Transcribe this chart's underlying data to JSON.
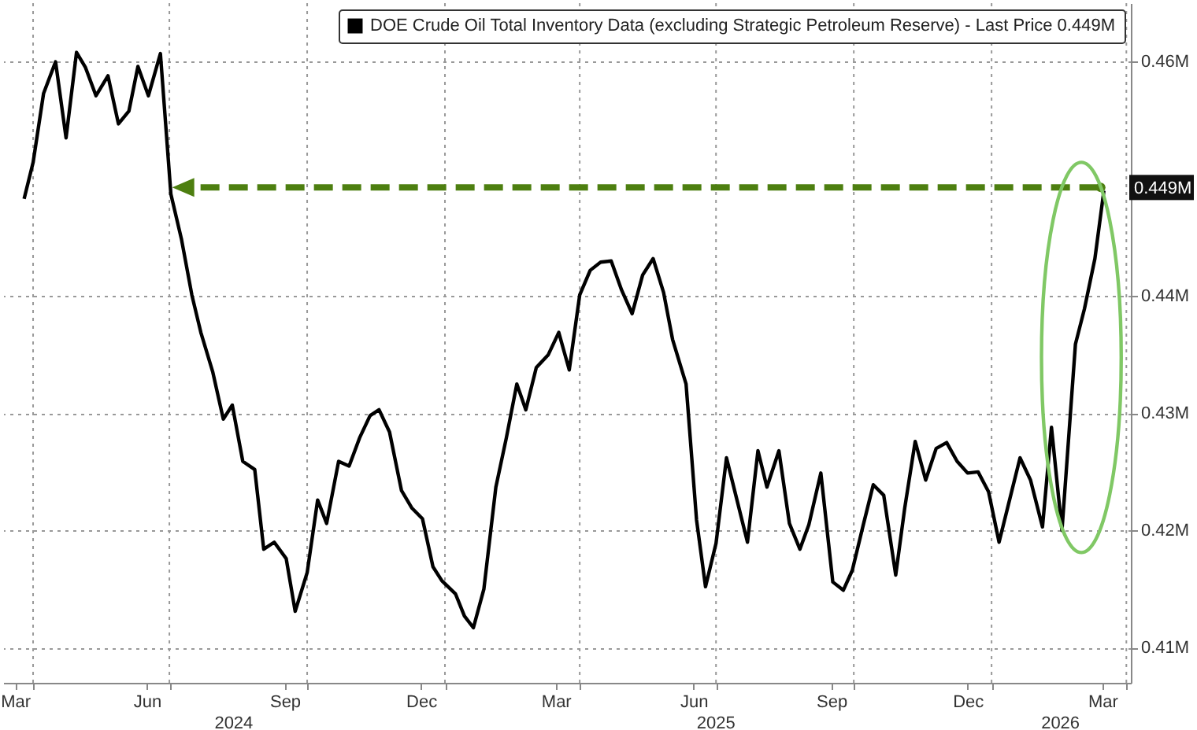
{
  "chart_data": {
    "type": "line",
    "x": [
      "2024-03-26",
      "2024-04-01",
      "2024-04-08",
      "2024-04-16",
      "2024-04-23",
      "2024-04-30",
      "2024-05-06",
      "2024-05-13",
      "2024-05-21",
      "2024-05-28",
      "2024-06-04",
      "2024-06-10",
      "2024-06-17",
      "2024-06-25",
      "2024-07-02",
      "2024-07-09",
      "2024-07-16",
      "2024-07-22",
      "2024-07-30",
      "2024-08-06",
      "2024-08-12",
      "2024-08-19",
      "2024-08-27",
      "2024-09-02",
      "2024-09-09",
      "2024-09-17",
      "2024-09-23",
      "2024-10-01",
      "2024-10-08",
      "2024-10-14",
      "2024-10-22",
      "2024-10-29",
      "2024-11-05",
      "2024-11-12",
      "2024-11-18",
      "2024-11-25",
      "2024-12-03",
      "2024-12-10",
      "2024-12-17",
      "2024-12-24",
      "2024-12-30",
      "2025-01-08",
      "2025-01-14",
      "2025-01-20",
      "2025-01-27",
      "2025-02-04",
      "2025-02-11",
      "2025-02-18",
      "2025-02-24",
      "2025-03-03",
      "2025-03-11",
      "2025-03-18",
      "2025-03-25",
      "2025-04-01",
      "2025-04-08",
      "2025-04-15",
      "2025-04-22",
      "2025-04-29",
      "2025-05-06",
      "2025-05-13",
      "2025-05-20",
      "2025-05-27",
      "2025-06-02",
      "2025-06-11",
      "2025-06-18",
      "2025-06-24",
      "2025-07-01",
      "2025-07-08",
      "2025-07-15",
      "2025-07-22",
      "2025-07-29",
      "2025-08-04",
      "2025-08-12",
      "2025-08-19",
      "2025-08-26",
      "2025-09-01",
      "2025-09-09",
      "2025-09-17",
      "2025-09-24",
      "2025-09-30",
      "2025-10-07",
      "2025-10-14",
      "2025-10-21",
      "2025-10-29",
      "2025-11-04",
      "2025-11-11",
      "2025-11-18",
      "2025-11-25",
      "2025-12-02",
      "2025-12-09",
      "2025-12-16",
      "2025-12-23",
      "2025-12-30",
      "2026-01-06",
      "2026-01-13",
      "2026-01-20",
      "2026-01-27",
      "2026-02-04",
      "2026-02-10",
      "2026-02-17",
      "2026-02-26",
      "2026-03-04",
      "2026-03-11",
      "2026-03-17"
    ],
    "series": [
      {
        "name": "DOE Crude Oil Total Inventory Data (excluding Strategic Petroleum Reserve) - Last Price 0.449M",
        "color": "#000000",
        "values": [
          0.4483,
          0.4514,
          0.4573,
          0.46,
          0.4535,
          0.4608,
          0.4595,
          0.4571,
          0.4588,
          0.4547,
          0.4558,
          0.4596,
          0.4571,
          0.4607,
          0.4487,
          0.4449,
          0.4401,
          0.4369,
          0.4335,
          0.4295,
          0.4307,
          0.4259,
          0.4252,
          0.4184,
          0.419,
          0.4176,
          0.4131,
          0.4164,
          0.4226,
          0.4206,
          0.4259,
          0.4255,
          0.4279,
          0.4298,
          0.4303,
          0.4284,
          0.4234,
          0.4219,
          0.421,
          0.4169,
          0.4157,
          0.4146,
          0.4127,
          0.4117,
          0.415,
          0.4237,
          0.4279,
          0.4325,
          0.4303,
          0.4339,
          0.435,
          0.4369,
          0.4337,
          0.4401,
          0.4422,
          0.4429,
          0.443,
          0.4405,
          0.4385,
          0.4418,
          0.4432,
          0.4403,
          0.4363,
          0.4325,
          0.4209,
          0.4152,
          0.4189,
          0.4262,
          0.4226,
          0.419,
          0.4268,
          0.4237,
          0.4268,
          0.4206,
          0.4184,
          0.4205,
          0.4249,
          0.4156,
          0.4149,
          0.4166,
          0.4203,
          0.4239,
          0.423,
          0.4162,
          0.4219,
          0.4276,
          0.4243,
          0.427,
          0.4275,
          0.4259,
          0.4249,
          0.425,
          0.4233,
          0.419,
          0.4226,
          0.4262,
          0.4243,
          0.4203,
          0.4288,
          0.42,
          0.4359,
          0.4389,
          0.4432,
          0.449
        ]
      }
    ],
    "xlim": [
      "2024-03-12",
      "2026-04-04"
    ],
    "xticks": [
      {
        "value": "2024-03-20",
        "label": "Mar"
      },
      {
        "value": "2024-06-16",
        "label": "Jun"
      },
      {
        "value": "2024-09-16",
        "label": "Sep"
      },
      {
        "value": "2024-12-16",
        "label": "Dec"
      },
      {
        "value": "2025-03-16",
        "label": "Mar"
      },
      {
        "value": "2025-06-16",
        "label": "Jun"
      },
      {
        "value": "2025-09-16",
        "label": "Sep"
      },
      {
        "value": "2025-12-16",
        "label": "Dec"
      },
      {
        "value": "2026-03-16",
        "label": "Mar"
      },
      {
        "value": "2024-04-01",
        "label": null
      },
      {
        "value": "2024-07-01",
        "label": null
      },
      {
        "value": "2024-10-01",
        "label": null
      },
      {
        "value": "2025-01-01",
        "label": null
      },
      {
        "value": "2025-04-01",
        "label": null
      },
      {
        "value": "2025-07-01",
        "label": null
      },
      {
        "value": "2025-10-01",
        "label": null
      },
      {
        "value": "2026-01-01",
        "label": null
      },
      {
        "value": "2026-04-01",
        "label": null
      }
    ],
    "x2lim": [
      "2024-03-12",
      "2026-04-04"
    ],
    "x2ticks": [
      {
        "value": "2024-08-13",
        "label": "2024"
      },
      {
        "value": "2025-07-01",
        "label": "2025"
      },
      {
        "value": "2026-02-16",
        "label": "2026"
      }
    ],
    "ylim": [
      0.407,
      0.465
    ],
    "yticks": [
      {
        "value": 0.41,
        "label": "0.41M"
      },
      {
        "value": 0.42,
        "label": "0.42M"
      },
      {
        "value": 0.43,
        "label": "0.43M"
      },
      {
        "value": 0.44,
        "label": "0.44M"
      },
      {
        "value": 0.46,
        "label": "0.46M"
      }
    ],
    "grid": true,
    "legend": "top right",
    "annotations": [
      {
        "text": "0.449M",
        "x": "2026-03-17",
        "y": 0.449
      }
    ]
  }
}
